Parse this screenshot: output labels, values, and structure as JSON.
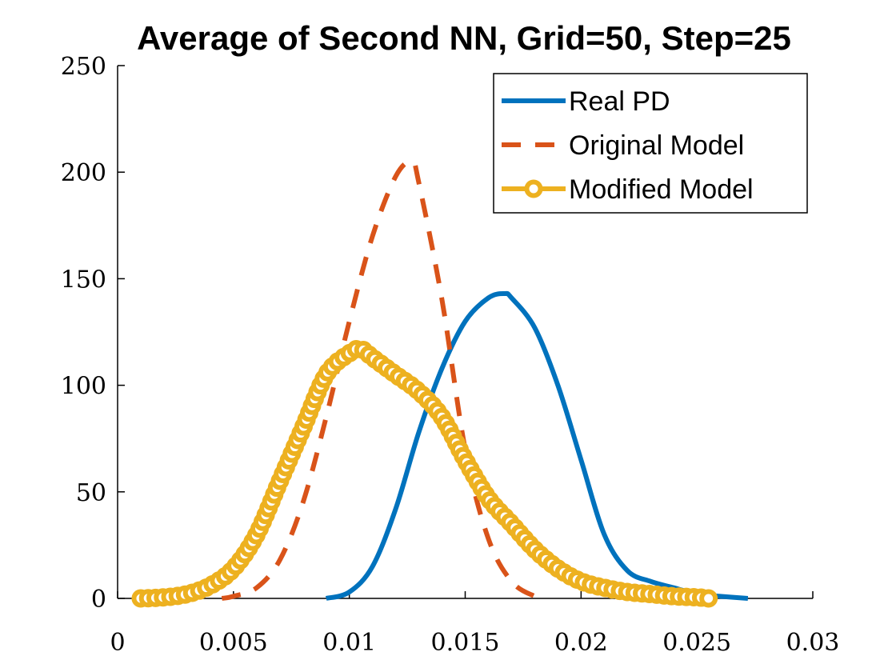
{
  "chart_data": {
    "type": "line",
    "title": "Average of Second NN, Grid=50, Step=25",
    "xlabel": "",
    "ylabel": "",
    "xlim": [
      0,
      0.03
    ],
    "ylim": [
      0,
      250
    ],
    "xticks": [
      "0",
      "0.005",
      "0.01",
      "0.015",
      "0.02",
      "0.025",
      "0.03"
    ],
    "yticks": [
      "0",
      "50",
      "100",
      "150",
      "200",
      "250"
    ],
    "grid": false,
    "legend_position": "top-right",
    "series": [
      {
        "name": "Real PD",
        "color": "#0072BD",
        "style": "solid",
        "x": [
          0.009,
          0.01,
          0.011,
          0.012,
          0.013,
          0.014,
          0.015,
          0.016,
          0.0167,
          0.017,
          0.018,
          0.019,
          0.02,
          0.021,
          0.022,
          0.023,
          0.024,
          0.025,
          0.026,
          0.0272
        ],
        "y": [
          0,
          3,
          15,
          42,
          78,
          108,
          130,
          141,
          143,
          141,
          127,
          100,
          65,
          30,
          13,
          8,
          5,
          2,
          1,
          0
        ]
      },
      {
        "name": "Original Model",
        "color": "#D95319",
        "style": "dashed",
        "x": [
          0.0045,
          0.005,
          0.006,
          0.007,
          0.008,
          0.009,
          0.01,
          0.011,
          0.012,
          0.0127,
          0.013,
          0.014,
          0.015,
          0.016,
          0.017,
          0.018,
          0.0185
        ],
        "y": [
          0,
          1,
          5,
          18,
          45,
          85,
          130,
          170,
          198,
          205,
          195,
          140,
          70,
          28,
          8,
          1,
          0
        ]
      },
      {
        "name": "Modified Model",
        "color": "#EDB120",
        "style": "solid-circle-markers",
        "x": [
          0.001,
          0.002,
          0.003,
          0.004,
          0.005,
          0.006,
          0.007,
          0.008,
          0.009,
          0.01,
          0.0105,
          0.011,
          0.012,
          0.013,
          0.014,
          0.015,
          0.016,
          0.017,
          0.018,
          0.019,
          0.02,
          0.021,
          0.022,
          0.023,
          0.024,
          0.025,
          0.0255
        ],
        "y": [
          0,
          0.5,
          2,
          6,
          14,
          30,
          55,
          80,
          105,
          115,
          117,
          113,
          105,
          97,
          85,
          65,
          47,
          35,
          23,
          14,
          8,
          5,
          3,
          2,
          1,
          0.5,
          0
        ]
      }
    ]
  }
}
